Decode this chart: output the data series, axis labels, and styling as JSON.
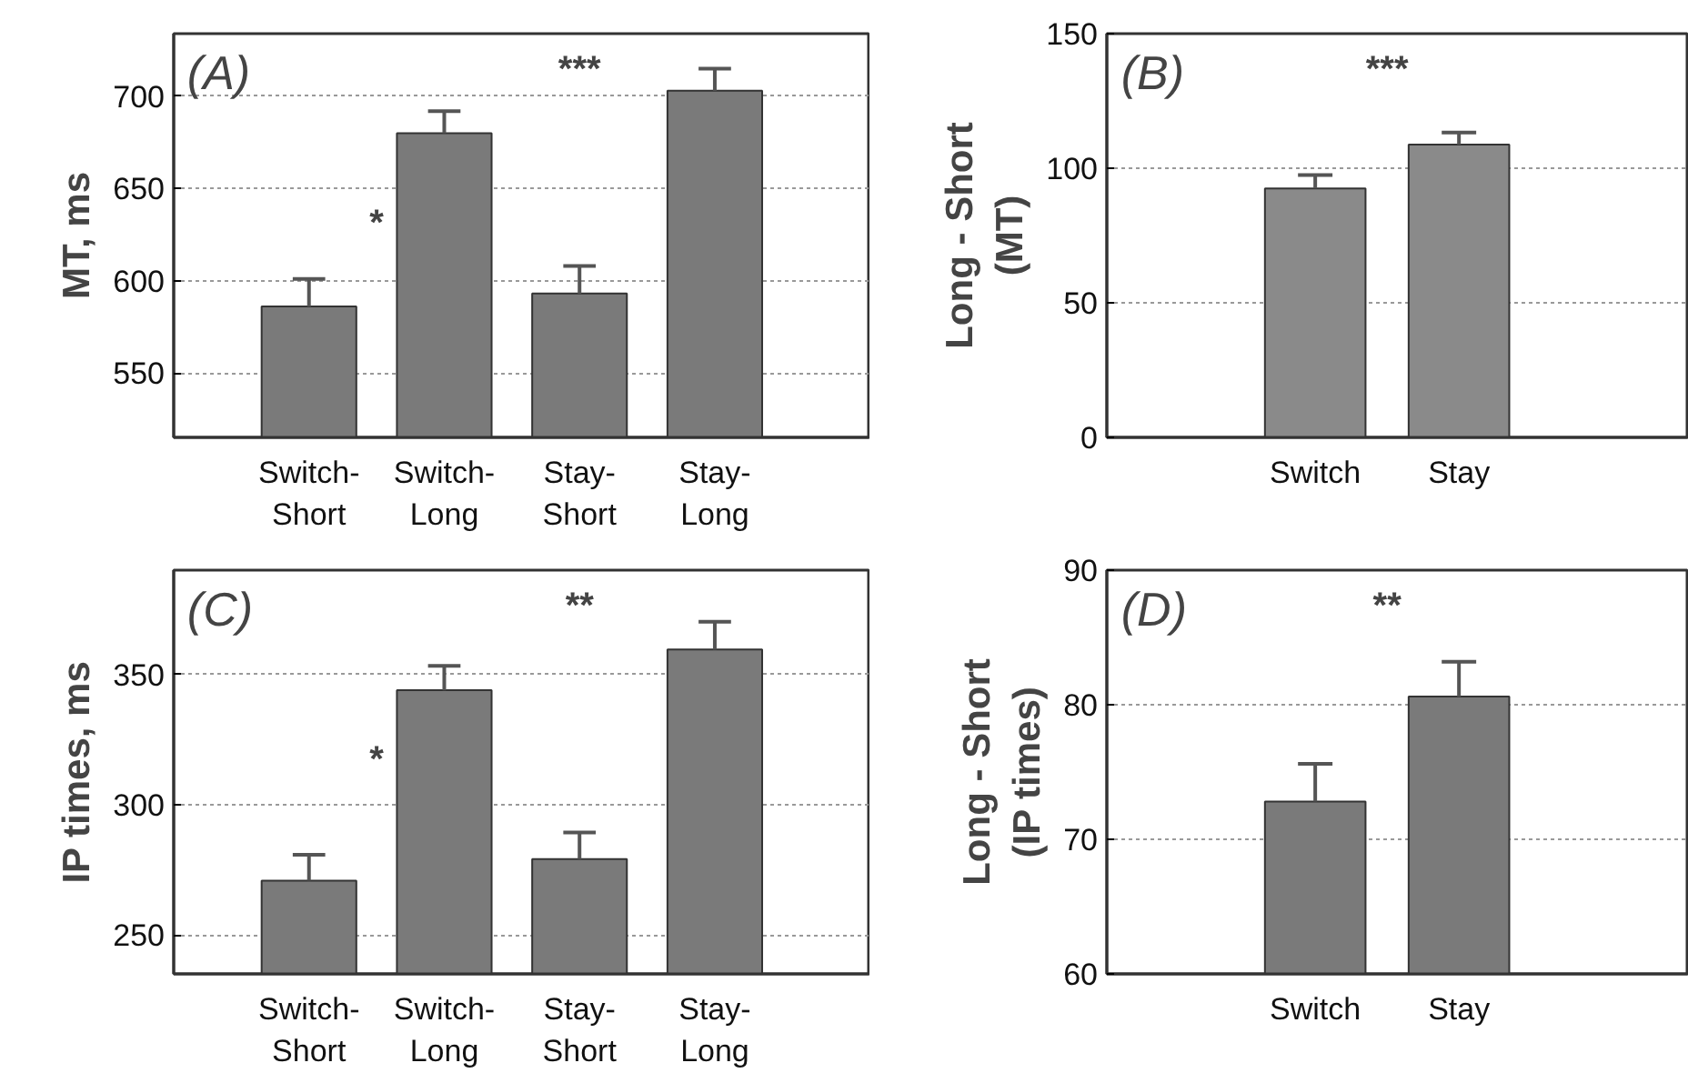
{
  "chart_data": [
    {
      "type": "bar",
      "categories": [
        "Switch-Short",
        "Switch-Long",
        "Stay-Short",
        "Stay-Long"
      ],
      "values": [
        586,
        680,
        593,
        703
      ],
      "errors": [
        [
          586,
          601
        ],
        [
          680,
          692
        ],
        [
          593,
          608
        ],
        [
          703,
          715
        ]
      ],
      "color": "#7a7a7a",
      "ylabel": "MT, ms",
      "ylim": [
        515,
        734
      ],
      "yticks": [
        550,
        600,
        650,
        700
      ],
      "grid": "y",
      "annotations": [
        "(A)",
        "***",
        "*"
      ]
    },
    {
      "type": "bar",
      "categories": [
        "Switch",
        "Stay"
      ],
      "values": [
        92.5,
        108.8
      ],
      "errors": [
        [
          92.5,
          97.5
        ],
        [
          108.8,
          113.3
        ]
      ],
      "color": "#8a8a8a",
      "ylabel": "Long - Short\n(MT)",
      "ylim": [
        0,
        150
      ],
      "yticks": [
        0,
        50,
        100,
        150
      ],
      "grid": "y",
      "annotations": [
        "(B)",
        "***"
      ]
    },
    {
      "type": "bar",
      "categories": [
        "Switch-Short",
        "Switch-Long",
        "Stay-Short",
        "Stay-Long"
      ],
      "values": [
        270.8,
        343.9,
        279.1,
        359.5
      ],
      "errors": [
        [
          270.8,
          280.7
        ],
        [
          343.9,
          353.3
        ],
        [
          279.1,
          289.3
        ],
        [
          359.5,
          370.2
        ]
      ],
      "color": "#7a7a7a",
      "ylabel": "IP times, ms",
      "ylim": [
        235,
        390
      ],
      "yticks": [
        250,
        300,
        350
      ],
      "grid": "y",
      "annotations": [
        "(C)",
        "**",
        "*"
      ]
    },
    {
      "type": "bar",
      "categories": [
        "Switch",
        "Stay"
      ],
      "values": [
        72.8,
        80.6
      ],
      "errors": [
        [
          72.8,
          75.6
        ],
        [
          80.6,
          83.2
        ]
      ],
      "color": "#7a7a7a",
      "ylabel": "Long - Short\n(IP times)",
      "ylim": [
        60,
        90
      ],
      "yticks": [
        60,
        70,
        80,
        90
      ],
      "grid": "y",
      "annotations": [
        "(D)",
        "**"
      ]
    }
  ]
}
